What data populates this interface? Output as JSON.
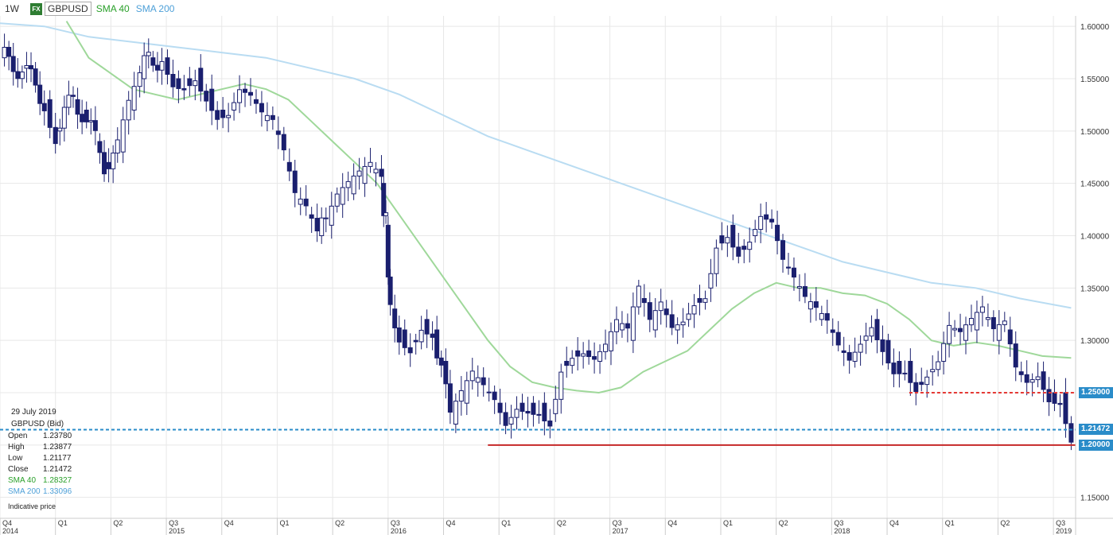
{
  "header": {
    "timeframe": "1W",
    "fx_badge": "FX",
    "symbol": "GBPUSD",
    "sma40_label": "SMA 40",
    "sma200_label": "SMA 200"
  },
  "infobox": {
    "date": "29 July 2019",
    "instrument": "GBPUSD (Bid)",
    "rows": [
      {
        "label": "Open",
        "value": "1.23780"
      },
      {
        "label": "High",
        "value": "1.23877"
      },
      {
        "label": "Low",
        "value": "1.21177"
      },
      {
        "label": "Close",
        "value": "1.21472"
      },
      {
        "label": "SMA 40",
        "value": "1.28327"
      },
      {
        "label": "SMA 200",
        "value": "1.33096"
      }
    ],
    "note": "Indicative price"
  },
  "price_tags": {
    "resistance": "1.25000",
    "current": "1.21472",
    "support": "1.20000"
  },
  "colors": {
    "candle": "#1a1f6e",
    "sma40": "#9fd89a",
    "sma200": "#b9dcf2",
    "resistance": "#e53935",
    "support": "#c62828",
    "current": "#2a8cc9",
    "grid": "#e8e8e8",
    "tag_current": "#2a8cc9",
    "tag_level": "#2a8cc9"
  },
  "chart_data": {
    "type": "candlestick",
    "ylim": [
      1.13,
      1.61
    ],
    "y_ticks": [
      "1.15000",
      "1.20000",
      "1.25000",
      "1.30000",
      "1.35000",
      "1.40000",
      "1.45000",
      "1.50000",
      "1.55000",
      "1.60000"
    ],
    "x_quarters": [
      {
        "label": "Q4",
        "t": 2014.75
      },
      {
        "label": "Q1",
        "t": 2015.0
      },
      {
        "label": "Q2",
        "t": 2015.25
      },
      {
        "label": "Q3",
        "t": 2015.5
      },
      {
        "label": "Q4",
        "t": 2015.75
      },
      {
        "label": "Q1",
        "t": 2016.0
      },
      {
        "label": "Q2",
        "t": 2016.25
      },
      {
        "label": "Q3",
        "t": 2016.5
      },
      {
        "label": "Q4",
        "t": 2016.75
      },
      {
        "label": "Q1",
        "t": 2017.0
      },
      {
        "label": "Q2",
        "t": 2017.25
      },
      {
        "label": "Q3",
        "t": 2017.5
      },
      {
        "label": "Q4",
        "t": 2017.75
      },
      {
        "label": "Q1",
        "t": 2018.0
      },
      {
        "label": "Q2",
        "t": 2018.25
      },
      {
        "label": "Q3",
        "t": 2018.5
      },
      {
        "label": "Q4",
        "t": 2018.75
      },
      {
        "label": "Q1",
        "t": 2019.0
      },
      {
        "label": "Q2",
        "t": 2019.25
      },
      {
        "label": "Q3",
        "t": 2019.5
      }
    ],
    "x_years": [
      {
        "label": "2014",
        "t": 2014.75
      },
      {
        "label": "2015",
        "t": 2015.5
      },
      {
        "label": "2016",
        "t": 2016.5
      },
      {
        "label": "2017",
        "t": 2017.5
      },
      {
        "label": "2018",
        "t": 2018.5
      },
      {
        "label": "2019",
        "t": 2019.5
      }
    ],
    "x_range": [
      2014.75,
      2019.6
    ],
    "horizontal_lines": {
      "resistance": {
        "value": 1.25,
        "from": 2018.85,
        "to": 2019.6,
        "style": "dashed"
      },
      "support": {
        "value": 1.2,
        "from": 2016.95,
        "to": 2019.6,
        "style": "solid"
      },
      "current": {
        "value": 1.21472,
        "from": 2014.75,
        "to": 2019.6,
        "style": "dashed"
      }
    },
    "series": [
      {
        "name": "GBPUSD",
        "points": [
          [
            2014.75,
            1.57
          ],
          [
            2014.85,
            1.56
          ],
          [
            2014.95,
            1.53
          ],
          [
            2015.0,
            1.5
          ],
          [
            2015.08,
            1.53
          ],
          [
            2015.12,
            1.52
          ],
          [
            2015.18,
            1.49
          ],
          [
            2015.22,
            1.47
          ],
          [
            2015.28,
            1.48
          ],
          [
            2015.33,
            1.52
          ],
          [
            2015.38,
            1.55
          ],
          [
            2015.42,
            1.57
          ],
          [
            2015.48,
            1.57
          ],
          [
            2015.53,
            1.55
          ],
          [
            2015.58,
            1.55
          ],
          [
            2015.63,
            1.56
          ],
          [
            2015.68,
            1.54
          ],
          [
            2015.73,
            1.52
          ],
          [
            2015.78,
            1.52
          ],
          [
            2015.83,
            1.54
          ],
          [
            2015.88,
            1.53
          ],
          [
            2015.93,
            1.51
          ],
          [
            2015.98,
            1.5
          ],
          [
            2016.03,
            1.47
          ],
          [
            2016.08,
            1.43
          ],
          [
            2016.13,
            1.42
          ],
          [
            2016.18,
            1.4
          ],
          [
            2016.22,
            1.41
          ],
          [
            2016.27,
            1.43
          ],
          [
            2016.32,
            1.44
          ],
          [
            2016.37,
            1.45
          ],
          [
            2016.42,
            1.46
          ],
          [
            2016.47,
            1.45
          ],
          [
            2016.49,
            1.41
          ],
          [
            2016.51,
            1.33
          ],
          [
            2016.55,
            1.31
          ],
          [
            2016.6,
            1.3
          ],
          [
            2016.65,
            1.32
          ],
          [
            2016.7,
            1.31
          ],
          [
            2016.74,
            1.28
          ],
          [
            2016.78,
            1.22
          ],
          [
            2016.83,
            1.24
          ],
          [
            2016.88,
            1.26
          ],
          [
            2016.93,
            1.25
          ],
          [
            2016.98,
            1.24
          ],
          [
            2017.03,
            1.22
          ],
          [
            2017.08,
            1.24
          ],
          [
            2017.13,
            1.24
          ],
          [
            2017.18,
            1.24
          ],
          [
            2017.23,
            1.23
          ],
          [
            2017.28,
            1.28
          ],
          [
            2017.33,
            1.29
          ],
          [
            2017.38,
            1.29
          ],
          [
            2017.43,
            1.28
          ],
          [
            2017.48,
            1.29
          ],
          [
            2017.53,
            1.31
          ],
          [
            2017.58,
            1.3
          ],
          [
            2017.63,
            1.34
          ],
          [
            2017.68,
            1.31
          ],
          [
            2017.73,
            1.33
          ],
          [
            2017.78,
            1.31
          ],
          [
            2017.83,
            1.32
          ],
          [
            2017.88,
            1.34
          ],
          [
            2017.93,
            1.35
          ],
          [
            2017.98,
            1.4
          ],
          [
            2018.03,
            1.41
          ],
          [
            2018.08,
            1.39
          ],
          [
            2018.13,
            1.4
          ],
          [
            2018.18,
            1.42
          ],
          [
            2018.23,
            1.41
          ],
          [
            2018.28,
            1.37
          ],
          [
            2018.33,
            1.35
          ],
          [
            2018.38,
            1.33
          ],
          [
            2018.43,
            1.32
          ],
          [
            2018.48,
            1.31
          ],
          [
            2018.53,
            1.29
          ],
          [
            2018.58,
            1.28
          ],
          [
            2018.63,
            1.3
          ],
          [
            2018.68,
            1.32
          ],
          [
            2018.73,
            1.3
          ],
          [
            2018.78,
            1.28
          ],
          [
            2018.83,
            1.28
          ],
          [
            2018.88,
            1.26
          ],
          [
            2018.93,
            1.27
          ],
          [
            2018.98,
            1.28
          ],
          [
            2019.03,
            1.31
          ],
          [
            2019.08,
            1.3
          ],
          [
            2019.13,
            1.31
          ],
          [
            2019.18,
            1.32
          ],
          [
            2019.23,
            1.3
          ],
          [
            2019.28,
            1.31
          ],
          [
            2019.33,
            1.27
          ],
          [
            2019.38,
            1.26
          ],
          [
            2019.43,
            1.27
          ],
          [
            2019.48,
            1.25
          ],
          [
            2019.53,
            1.25
          ],
          [
            2019.58,
            1.21472
          ]
        ]
      },
      {
        "name": "SMA 40",
        "points": [
          [
            2015.05,
            1.605
          ],
          [
            2015.15,
            1.57
          ],
          [
            2015.25,
            1.555
          ],
          [
            2015.35,
            1.54
          ],
          [
            2015.45,
            1.535
          ],
          [
            2015.55,
            1.53
          ],
          [
            2015.65,
            1.535
          ],
          [
            2015.75,
            1.54
          ],
          [
            2015.85,
            1.545
          ],
          [
            2015.95,
            1.54
          ],
          [
            2016.05,
            1.53
          ],
          [
            2016.15,
            1.51
          ],
          [
            2016.25,
            1.49
          ],
          [
            2016.35,
            1.47
          ],
          [
            2016.45,
            1.45
          ],
          [
            2016.55,
            1.42
          ],
          [
            2016.65,
            1.39
          ],
          [
            2016.75,
            1.36
          ],
          [
            2016.85,
            1.33
          ],
          [
            2016.95,
            1.3
          ],
          [
            2017.05,
            1.275
          ],
          [
            2017.15,
            1.26
          ],
          [
            2017.25,
            1.255
          ],
          [
            2017.35,
            1.252
          ],
          [
            2017.45,
            1.25
          ],
          [
            2017.55,
            1.255
          ],
          [
            2017.65,
            1.27
          ],
          [
            2017.75,
            1.28
          ],
          [
            2017.85,
            1.29
          ],
          [
            2017.95,
            1.31
          ],
          [
            2018.05,
            1.33
          ],
          [
            2018.15,
            1.345
          ],
          [
            2018.25,
            1.355
          ],
          [
            2018.35,
            1.35
          ],
          [
            2018.45,
            1.35
          ],
          [
            2018.55,
            1.345
          ],
          [
            2018.65,
            1.343
          ],
          [
            2018.75,
            1.335
          ],
          [
            2018.85,
            1.32
          ],
          [
            2018.95,
            1.3
          ],
          [
            2019.05,
            1.295
          ],
          [
            2019.15,
            1.298
          ],
          [
            2019.25,
            1.295
          ],
          [
            2019.35,
            1.29
          ],
          [
            2019.45,
            1.285
          ],
          [
            2019.58,
            1.28327
          ]
        ]
      },
      {
        "name": "SMA 200",
        "points": [
          [
            2014.75,
            1.603
          ],
          [
            2014.95,
            1.6
          ],
          [
            2015.15,
            1.59
          ],
          [
            2015.35,
            1.585
          ],
          [
            2015.55,
            1.58
          ],
          [
            2015.75,
            1.575
          ],
          [
            2015.95,
            1.57
          ],
          [
            2016.15,
            1.56
          ],
          [
            2016.35,
            1.55
          ],
          [
            2016.55,
            1.535
          ],
          [
            2016.75,
            1.515
          ],
          [
            2016.95,
            1.495
          ],
          [
            2017.15,
            1.48
          ],
          [
            2017.35,
            1.465
          ],
          [
            2017.55,
            1.45
          ],
          [
            2017.75,
            1.435
          ],
          [
            2017.95,
            1.42
          ],
          [
            2018.15,
            1.405
          ],
          [
            2018.35,
            1.39
          ],
          [
            2018.55,
            1.375
          ],
          [
            2018.75,
            1.365
          ],
          [
            2018.95,
            1.355
          ],
          [
            2019.15,
            1.35
          ],
          [
            2019.35,
            1.34
          ],
          [
            2019.58,
            1.33096
          ]
        ]
      }
    ]
  }
}
